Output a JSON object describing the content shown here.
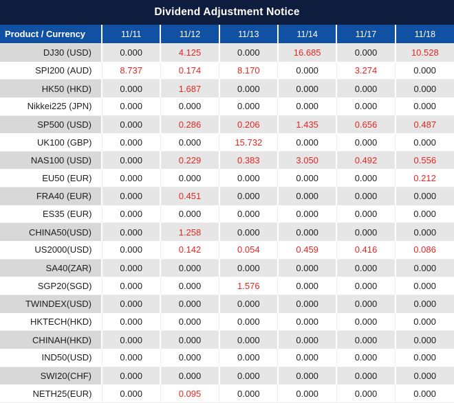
{
  "title": "Dividend Adjustment Notice",
  "colors": {
    "title_bar_navy": "#0e1d3d",
    "header_blue": "#1051a3",
    "stripe_row_gray": "#e6e6e6",
    "stripe_product_gray": "#d8d8d8",
    "plain_row_white": "#ffffff",
    "value_text_black": "#1c1c1c",
    "nonzero_value_red": "#e8251f",
    "header_text_white": "#ffffff"
  },
  "chart_data": {
    "type": "table",
    "title": "Dividend Adjustment Notice",
    "columns": [
      "Product / Currency",
      "11/11",
      "11/12",
      "11/13",
      "11/14",
      "11/17",
      "11/18"
    ],
    "zero_value": "0.000",
    "rows": [
      {
        "product": "DJ30 (USD)",
        "values": [
          "0.000",
          "4.125",
          "0.000",
          "16.685",
          "0.000",
          "10.528"
        ]
      },
      {
        "product": "SPI200 (AUD)",
        "values": [
          "8.737",
          "0.174",
          "8.170",
          "0.000",
          "3.274",
          "0.000"
        ]
      },
      {
        "product": "HK50 (HKD)",
        "values": [
          "0.000",
          "1.687",
          "0.000",
          "0.000",
          "0.000",
          "0.000"
        ]
      },
      {
        "product": "Nikkei225 (JPN)",
        "values": [
          "0.000",
          "0.000",
          "0.000",
          "0.000",
          "0.000",
          "0.000"
        ]
      },
      {
        "product": "SP500 (USD)",
        "values": [
          "0.000",
          "0.286",
          "0.206",
          "1.435",
          "0.656",
          "0.487"
        ]
      },
      {
        "product": "UK100 (GBP)",
        "values": [
          "0.000",
          "0.000",
          "15.732",
          "0.000",
          "0.000",
          "0.000"
        ]
      },
      {
        "product": "NAS100 (USD)",
        "values": [
          "0.000",
          "0.229",
          "0.383",
          "3.050",
          "0.492",
          "0.556"
        ]
      },
      {
        "product": "EU50 (EUR)",
        "values": [
          "0.000",
          "0.000",
          "0.000",
          "0.000",
          "0.000",
          "0.212"
        ]
      },
      {
        "product": "FRA40 (EUR)",
        "values": [
          "0.000",
          "0.451",
          "0.000",
          "0.000",
          "0.000",
          "0.000"
        ]
      },
      {
        "product": "ES35 (EUR)",
        "values": [
          "0.000",
          "0.000",
          "0.000",
          "0.000",
          "0.000",
          "0.000"
        ]
      },
      {
        "product": "CHINA50(USD)",
        "values": [
          "0.000",
          "1.258",
          "0.000",
          "0.000",
          "0.000",
          "0.000"
        ]
      },
      {
        "product": "US2000(USD)",
        "values": [
          "0.000",
          "0.142",
          "0.054",
          "0.459",
          "0.416",
          "0.086"
        ]
      },
      {
        "product": "SA40(ZAR)",
        "values": [
          "0.000",
          "0.000",
          "0.000",
          "0.000",
          "0.000",
          "0.000"
        ]
      },
      {
        "product": "SGP20(SGD)",
        "values": [
          "0.000",
          "0.000",
          "1.576",
          "0.000",
          "0.000",
          "0.000"
        ]
      },
      {
        "product": "TWINDEX(USD)",
        "values": [
          "0.000",
          "0.000",
          "0.000",
          "0.000",
          "0.000",
          "0.000"
        ]
      },
      {
        "product": "HKTECH(HKD)",
        "values": [
          "0.000",
          "0.000",
          "0.000",
          "0.000",
          "0.000",
          "0.000"
        ]
      },
      {
        "product": "CHINAH(HKD)",
        "values": [
          "0.000",
          "0.000",
          "0.000",
          "0.000",
          "0.000",
          "0.000"
        ]
      },
      {
        "product": "IND50(USD)",
        "values": [
          "0.000",
          "0.000",
          "0.000",
          "0.000",
          "0.000",
          "0.000"
        ]
      },
      {
        "product": "SWI20(CHF)",
        "values": [
          "0.000",
          "0.000",
          "0.000",
          "0.000",
          "0.000",
          "0.000"
        ]
      },
      {
        "product": "NETH25(EUR)",
        "values": [
          "0.000",
          "0.095",
          "0.000",
          "0.000",
          "0.000",
          "0.000"
        ]
      }
    ]
  }
}
